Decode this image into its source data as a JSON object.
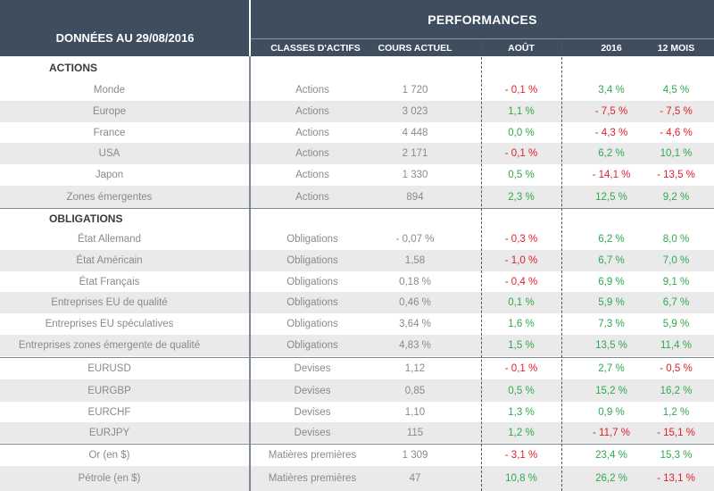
{
  "header": {
    "left_title": "DONNÉES AU 29/08/2016",
    "performances": "PERFORMANCES",
    "columns": {
      "classes": "CLASSES D'ACTIFS",
      "cours": "COURS ACTUEL",
      "aout": "AOÛT",
      "y2016": "2016",
      "m12": "12 MOIS"
    }
  },
  "sections": {
    "actions": "ACTIONS",
    "obligations": "OBLIGATIONS"
  },
  "rows": [
    {
      "name": "Monde",
      "classe": "Actions",
      "cours": "1 720",
      "aout": "- 0,1 %",
      "y2016": "3,4 %",
      "m12": "4,5 %"
    },
    {
      "name": "Europe",
      "classe": "Actions",
      "cours": "3 023",
      "aout": "1,1 %",
      "y2016": "- 7,5 %",
      "m12": "- 7,5 %"
    },
    {
      "name": "France",
      "classe": "Actions",
      "cours": "4 448",
      "aout": "0,0 %",
      "y2016": "- 4,3 %",
      "m12": "- 4,6 %"
    },
    {
      "name": "USA",
      "classe": "Actions",
      "cours": "2 171",
      "aout": "- 0,1 %",
      "y2016": "6,2 %",
      "m12": "10,1 %"
    },
    {
      "name": "Japon",
      "classe": "Actions",
      "cours": "1 330",
      "aout": "0,5  %",
      "y2016": "- 14,1 %",
      "m12": "- 13,5 %"
    },
    {
      "name": "Zones émergentes",
      "classe": "Actions",
      "cours": "894",
      "aout": "2,3 %",
      "y2016": "12,5 %",
      "m12": "9,2 %"
    },
    {
      "name": "État Allemand",
      "classe": "Obligations",
      "cours": "- 0,07 %",
      "aout": "- 0,3 %",
      "y2016": "6,2 %",
      "m12": "8,0 %"
    },
    {
      "name": "État Américain",
      "classe": "Obligations",
      "cours": "1,58",
      "aout": "- 1,0  %",
      "y2016": "6,7 %",
      "m12": "7,0 %"
    },
    {
      "name": "État Français",
      "classe": "Obligations",
      "cours": "0,18 %",
      "aout": "- 0,4 %",
      "y2016": "6,9 %",
      "m12": "9,1 %"
    },
    {
      "name": "Entreprises EU de qualité",
      "classe": "Obligations",
      "cours": "0,46 %",
      "aout": "0,1  %",
      "y2016": "5,9 %",
      "m12": "6,7 %"
    },
    {
      "name": "Entreprises EU spéculatives",
      "classe": "Obligations",
      "cours": "3,64 %",
      "aout": "1,6 %",
      "y2016": "7,3 %",
      "m12": "5,9 %"
    },
    {
      "name": "Entreprises zones émergente de qualité",
      "classe": "Obligations",
      "cours": "4,83 %",
      "aout": "1,5 %",
      "y2016": "13,5 %",
      "m12": "11,4 %"
    },
    {
      "name": "EURUSD",
      "classe": "Devises",
      "cours": "1,12",
      "aout": "- 0,1 %",
      "y2016": "2,7 %",
      "m12": "- 0,5 %"
    },
    {
      "name": "EURGBP",
      "classe": "Devises",
      "cours": "0,85",
      "aout": "0,5 %",
      "y2016": "15,2 %",
      "m12": "16,2 %"
    },
    {
      "name": "EURCHF",
      "classe": "Devises",
      "cours": "1,10",
      "aout": "1,3 %",
      "y2016": "0,9 %",
      "m12": "1,2 %"
    },
    {
      "name": "EURJPY",
      "classe": "Devises",
      "cours": "115",
      "aout": "1,2 %",
      "y2016": "- 11,7 %",
      "m12": "- 15,1 %"
    },
    {
      "name": "Or (en $)",
      "classe": "Matières premières",
      "cours": "1 309",
      "aout": "- 3,1 %",
      "y2016": "23,4 %",
      "m12": "15,3 %"
    },
    {
      "name": "Pétrole (en $)",
      "classe": "Matières premières",
      "cours": "47",
      "aout": "10,8 %",
      "y2016": "26,2 %",
      "m12": "- 13,1 %"
    }
  ],
  "colors": {
    "header_bg": "#3f4e5f",
    "negative": "#e0202a",
    "positive": "#2fa84f",
    "shade": "#eaeaea"
  }
}
